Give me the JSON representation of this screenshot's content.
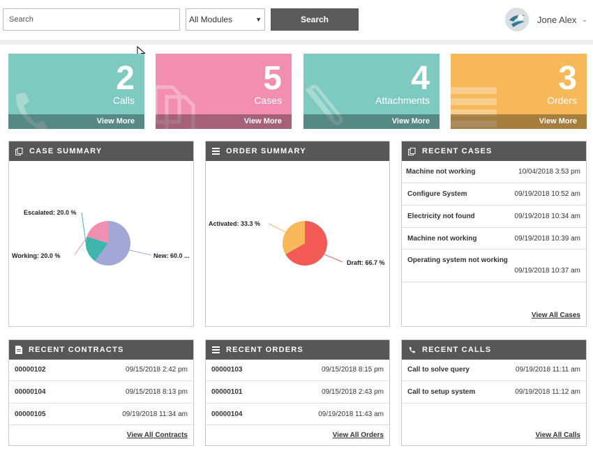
{
  "search": {
    "placeholder": "Search",
    "module": "All Modules",
    "button": "Search"
  },
  "user": {
    "name": "Jone Alex"
  },
  "tiles": [
    {
      "count": "2",
      "label": "Calls",
      "more": "View More",
      "color": "#7fcac0",
      "icon": "phone-icon"
    },
    {
      "count": "5",
      "label": "Cases",
      "more": "View More",
      "color": "#f28fb0",
      "icon": "document-icon"
    },
    {
      "count": "4",
      "label": "Attachments",
      "more": "View More",
      "color": "#7fcac0",
      "icon": "paperclip-icon"
    },
    {
      "count": "3",
      "label": "Orders",
      "more": "View More",
      "color": "#f7b85a",
      "icon": "list-icon"
    }
  ],
  "case_summary": {
    "title": "CASE SUMMARY",
    "chart_data": {
      "type": "pie",
      "labels": [
        "New",
        "Escalated",
        "Working"
      ],
      "values": [
        60.0,
        20.0,
        20.0
      ],
      "colors": [
        "#a3a7d6",
        "#40b5ad",
        "#f08fb2"
      ],
      "label_text": [
        "New: 60.0 ...",
        "Escalated: 20.0 %",
        "Working: 20.0 %"
      ]
    }
  },
  "order_summary": {
    "title": "ORDER SUMMARY",
    "chart_data": {
      "type": "pie",
      "labels": [
        "Draft",
        "Activated"
      ],
      "values": [
        66.7,
        33.3
      ],
      "colors": [
        "#f25a55",
        "#f7b85a"
      ],
      "label_text": [
        "Draft: 66.7 %",
        "Activated: 33.3 %"
      ]
    }
  },
  "recent_cases": {
    "title": "RECENT CASES",
    "rows": [
      {
        "name": "Machine not working",
        "date": "10/04/2018 3:53 pm"
      },
      {
        "name": "Configure System",
        "date": "09/19/2018 10:52 am"
      },
      {
        "name": "Electricity not found",
        "date": "09/19/2018 10:34 am"
      },
      {
        "name": "Machine not working",
        "date": "09/19/2018 10:39 am"
      },
      {
        "name": "Operating system not working",
        "date": "09/19/2018 10:37 am"
      }
    ],
    "view_all": "View All Cases"
  },
  "recent_contracts": {
    "title": "RECENT CONTRACTS",
    "rows": [
      {
        "name": "00000102",
        "date": "09/15/2018 2:42 pm"
      },
      {
        "name": "00000104",
        "date": "09/15/2018 8:13 pm"
      },
      {
        "name": "00000105",
        "date": "09/19/2018 11:34 am"
      }
    ],
    "view_all": "View All Contracts"
  },
  "recent_orders": {
    "title": "RECENT ORDERS",
    "rows": [
      {
        "name": "00000103",
        "date": "09/15/2018 8:15 pm"
      },
      {
        "name": "00000101",
        "date": "09/15/2018 2:43 pm"
      },
      {
        "name": "00000104",
        "date": "09/19/2018 11:43 am"
      }
    ],
    "view_all": "View All Orders"
  },
  "recent_calls": {
    "title": "RECENT CALLS",
    "rows": [
      {
        "name": "Call to solve query",
        "date": "09/19/2018 11:11 am"
      },
      {
        "name": "Call to setup system",
        "date": "09/19/2018 11:12 am"
      }
    ],
    "view_all": "View All Calls"
  }
}
